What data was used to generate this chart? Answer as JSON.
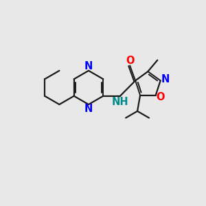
{
  "background_color": "#E8E8E8",
  "bond_color": "#1a1a1a",
  "N_color": "#0000FF",
  "O_color": "#FF0000",
  "NH_color": "#008B8B",
  "lw": 1.6,
  "lw_double": 1.4,
  "figsize": [
    3.0,
    3.0
  ],
  "dpi": 100,
  "xlim": [
    0,
    10
  ],
  "ylim": [
    0,
    10
  ]
}
